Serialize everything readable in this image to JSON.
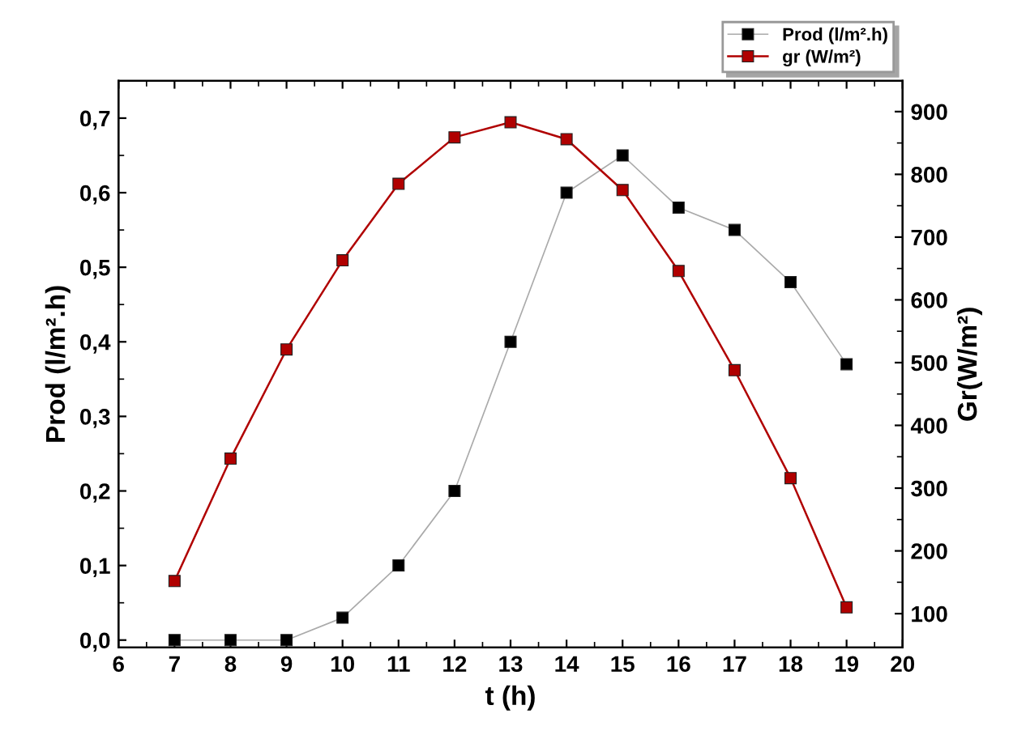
{
  "chart_data": {
    "type": "line",
    "xlabel": "t (h)",
    "ylabel": "Prod (l/m².h)",
    "y2label": "Gr(W/m²)",
    "x": [
      7,
      8,
      9,
      10,
      11,
      12,
      13,
      14,
      15,
      16,
      17,
      18,
      19
    ],
    "series": [
      {
        "name": "Prod (l/m².h)",
        "color": "#000000",
        "values": [
          0,
          0,
          0,
          0.03,
          0.1,
          0.2,
          0.4,
          0.6,
          0.65,
          0.58,
          0.55,
          0.48,
          0.37
        ]
      },
      {
        "name": "gr (W/m²)",
        "color": "#b00000",
        "axis": "y2",
        "values": [
          152,
          347,
          521,
          663,
          785,
          859,
          883,
          856,
          775,
          646,
          488,
          316,
          110
        ]
      }
    ],
    "xlim": [
      6,
      20
    ],
    "xticks": [
      6,
      7,
      8,
      9,
      10,
      11,
      12,
      13,
      14,
      15,
      16,
      17,
      18,
      19,
      20
    ],
    "ylim": [
      -0.01,
      0.75
    ],
    "yticks": [
      {
        "value": 0,
        "label": "0,0"
      },
      {
        "value": 0.1,
        "label": "0,1"
      },
      {
        "value": 0.2,
        "label": "0,2"
      },
      {
        "value": 0.3,
        "label": "0,3"
      },
      {
        "value": 0.4,
        "label": "0,4"
      },
      {
        "value": 0.5,
        "label": "0,5"
      },
      {
        "value": 0.6,
        "label": "0,6"
      },
      {
        "value": 0.7,
        "label": "0,7"
      }
    ],
    "y2lim": [
      46,
      949
    ],
    "y2ticks": [
      100,
      200,
      300,
      400,
      500,
      600,
      700,
      800,
      900
    ],
    "marker": "square",
    "line_style": "solid",
    "grid": false,
    "legend": "top right"
  }
}
